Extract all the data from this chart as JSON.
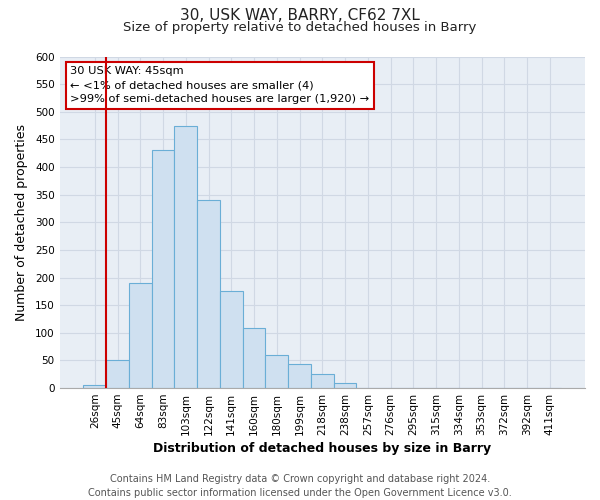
{
  "title": "30, USK WAY, BARRY, CF62 7XL",
  "subtitle": "Size of property relative to detached houses in Barry",
  "xlabel": "Distribution of detached houses by size in Barry",
  "ylabel": "Number of detached properties",
  "bar_labels": [
    "26sqm",
    "45sqm",
    "64sqm",
    "83sqm",
    "103sqm",
    "122sqm",
    "141sqm",
    "160sqm",
    "180sqm",
    "199sqm",
    "218sqm",
    "238sqm",
    "257sqm",
    "276sqm",
    "295sqm",
    "315sqm",
    "334sqm",
    "353sqm",
    "372sqm",
    "392sqm",
    "411sqm"
  ],
  "bar_values": [
    5,
    50,
    190,
    430,
    475,
    340,
    175,
    108,
    60,
    44,
    25,
    10,
    0,
    0,
    0,
    0,
    0,
    0,
    0,
    0,
    0
  ],
  "bar_color": "#cfe0f0",
  "bar_edge_color": "#6aaed6",
  "highlight_bar_index": 1,
  "highlight_edge_color": "#cc0000",
  "ylim": [
    0,
    600
  ],
  "yticks": [
    0,
    50,
    100,
    150,
    200,
    250,
    300,
    350,
    400,
    450,
    500,
    550,
    600
  ],
  "annotation_title": "30 USK WAY: 45sqm",
  "annotation_line1": "← <1% of detached houses are smaller (4)",
  "annotation_line2": ">99% of semi-detached houses are larger (1,920) →",
  "annotation_box_color": "#ffffff",
  "annotation_box_edge_color": "#cc0000",
  "footer_line1": "Contains HM Land Registry data © Crown copyright and database right 2024.",
  "footer_line2": "Contains public sector information licensed under the Open Government Licence v3.0.",
  "background_color": "#ffffff",
  "grid_color": "#d0d8e4",
  "plot_bg_color": "#e8eef5",
  "title_fontsize": 11,
  "subtitle_fontsize": 9.5,
  "axis_label_fontsize": 9,
  "tick_fontsize": 7.5,
  "footer_fontsize": 7
}
